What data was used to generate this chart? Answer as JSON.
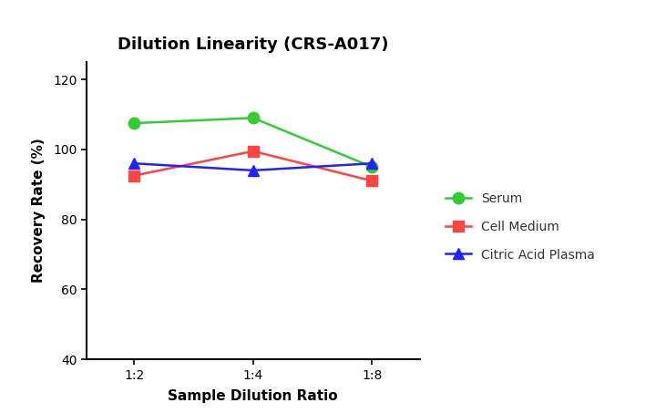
{
  "title": "Dilution Linearity (CRS-A017)",
  "xlabel": "Sample Dilution Ratio",
  "ylabel": "Recovery Rate (%)",
  "x_labels": [
    "1:2",
    "1:4",
    "1:8"
  ],
  "x_values": [
    0,
    1,
    2
  ],
  "series": [
    {
      "label": "Serum",
      "values": [
        107.5,
        109.0,
        95.0
      ],
      "color": "#33CC33",
      "marker": "o",
      "linewidth": 1.8
    },
    {
      "label": "Cell Medium",
      "values": [
        92.5,
        99.5,
        91.0
      ],
      "color": "#FF4444",
      "marker": "s",
      "linewidth": 1.8
    },
    {
      "label": "Citric Acid Plasma",
      "values": [
        96.0,
        94.0,
        96.0
      ],
      "color": "#2222FF",
      "marker": "^",
      "linewidth": 1.8
    }
  ],
  "ylim": [
    40,
    125
  ],
  "yticks": [
    40,
    60,
    80,
    100,
    120
  ],
  "background_color": "#ffffff",
  "title_fontsize": 13,
  "label_fontsize": 11,
  "tick_fontsize": 10,
  "legend_fontsize": 10,
  "marker_size": 9
}
